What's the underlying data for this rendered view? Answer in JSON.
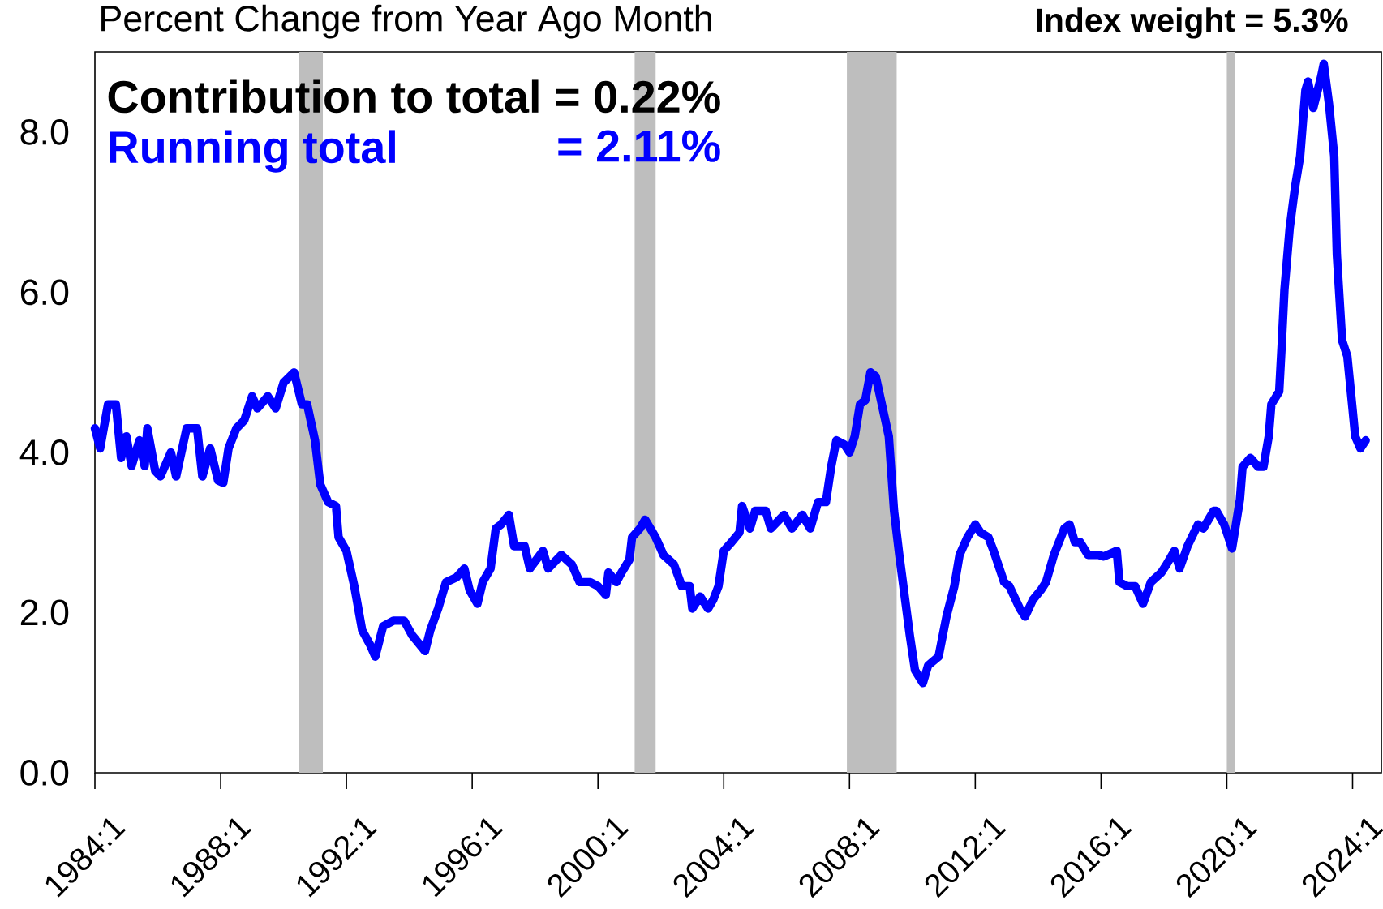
{
  "chart_data": {
    "type": "line",
    "title": "Percent Change from Year Ago Month",
    "annotations": [
      "Index weight = 5.3%",
      "Contribution to total = 0.22%",
      "Running total",
      "= 2.11%"
    ],
    "x": [
      "1984-01",
      "1984-03",
      "1984-06",
      "1984-09",
      "1984-11",
      "1985-01",
      "1985-03",
      "1985-06",
      "1985-08",
      "1985-09",
      "1985-12",
      "1986-02",
      "1986-06",
      "1986-08",
      "1986-12",
      "1987-04",
      "1987-06",
      "1987-09",
      "1987-12",
      "1988-02",
      "1988-04",
      "1988-07",
      "1988-10",
      "1989-01",
      "1989-03",
      "1989-07",
      "1989-10",
      "1990-01",
      "1990-05",
      "1990-08",
      "1990-10",
      "1991-01",
      "1991-03",
      "1991-06",
      "1991-09",
      "1991-10",
      "1992-01",
      "1992-04",
      "1992-07",
      "1992-10",
      "1992-12",
      "1993-03",
      "1993-07",
      "1993-11",
      "1994-02",
      "1994-07",
      "1994-09",
      "1994-12",
      "1995-03",
      "1995-07",
      "1995-10",
      "1995-12",
      "1996-03",
      "1996-05",
      "1996-08",
      "1996-10",
      "1996-12",
      "1997-03",
      "1997-05",
      "1997-09",
      "1997-11",
      "1998-04",
      "1998-06",
      "1998-11",
      "1999-03",
      "1999-06",
      "1999-10",
      "2000-01",
      "2000-04",
      "2000-05",
      "2000-08",
      "2000-10",
      "2001-01",
      "2001-02",
      "2001-05",
      "2001-07",
      "2001-09",
      "2001-11",
      "2002-02",
      "2002-06",
      "2002-09",
      "2002-12",
      "2003-01",
      "2003-04",
      "2003-07",
      "2003-09",
      "2003-11",
      "2004-01",
      "2004-04",
      "2004-07",
      "2004-08",
      "2004-11",
      "2005-01",
      "2005-05",
      "2005-07",
      "2005-12",
      "2006-03",
      "2006-07",
      "2006-10",
      "2007-01",
      "2007-04",
      "2007-06",
      "2007-08",
      "2007-11",
      "2008-01",
      "2008-03",
      "2008-05",
      "2008-07",
      "2008-09",
      "2008-11",
      "2009-01",
      "2009-04",
      "2009-06",
      "2009-08",
      "2009-10",
      "2009-12",
      "2010-02",
      "2010-05",
      "2010-07",
      "2010-11",
      "2011-02",
      "2011-05",
      "2011-07",
      "2011-10",
      "2012-01",
      "2012-03",
      "2012-06",
      "2012-08",
      "2012-12",
      "2013-02",
      "2013-06",
      "2013-08",
      "2013-11",
      "2014-02",
      "2014-04",
      "2014-07",
      "2014-11",
      "2015-01",
      "2015-03",
      "2015-05",
      "2015-08",
      "2015-12",
      "2016-02",
      "2016-07",
      "2016-08",
      "2016-11",
      "2017-02",
      "2017-05",
      "2017-08",
      "2017-12",
      "2018-02",
      "2018-05",
      "2018-07",
      "2018-10",
      "2019-02",
      "2019-04",
      "2019-08",
      "2019-09",
      "2019-12",
      "2020-03",
      "2020-06",
      "2020-07",
      "2020-10",
      "2021-01",
      "2021-03",
      "2021-05",
      "2021-06",
      "2021-09",
      "2021-10",
      "2021-11",
      "2022-01",
      "2022-03",
      "2022-05",
      "2022-07",
      "2022-08",
      "2022-10",
      "2023-01",
      "2023-02",
      "2023-04",
      "2023-06",
      "2023-07",
      "2023-09",
      "2023-11",
      "2024-01",
      "2024-02",
      "2024-04",
      "2024-06"
    ],
    "series": [
      {
        "color": "#0000ff",
        "values": [
          4.3,
          4.05,
          4.6,
          4.6,
          3.93,
          4.2,
          3.83,
          4.15,
          3.83,
          4.3,
          3.77,
          3.7,
          4.0,
          3.7,
          4.3,
          4.3,
          3.7,
          4.05,
          3.65,
          3.62,
          4.05,
          4.3,
          4.4,
          4.7,
          4.55,
          4.7,
          4.55,
          4.87,
          5.0,
          4.6,
          4.6,
          4.15,
          3.6,
          3.38,
          3.33,
          2.94,
          2.77,
          2.33,
          1.78,
          1.6,
          1.45,
          1.83,
          1.9,
          1.9,
          1.72,
          1.52,
          1.78,
          2.05,
          2.38,
          2.44,
          2.55,
          2.28,
          2.11,
          2.38,
          2.55,
          3.05,
          3.1,
          3.22,
          2.83,
          2.83,
          2.55,
          2.77,
          2.55,
          2.72,
          2.6,
          2.38,
          2.38,
          2.33,
          2.22,
          2.5,
          2.38,
          2.5,
          2.66,
          2.94,
          3.05,
          3.16,
          3.05,
          2.94,
          2.72,
          2.6,
          2.33,
          2.33,
          2.05,
          2.2,
          2.05,
          2.16,
          2.33,
          2.77,
          2.88,
          3.0,
          3.33,
          3.05,
          3.27,
          3.27,
          3.05,
          3.22,
          3.05,
          3.22,
          3.05,
          3.38,
          3.38,
          3.82,
          4.15,
          4.1,
          4.0,
          4.2,
          4.6,
          4.65,
          5.0,
          4.95,
          4.65,
          4.2,
          3.27,
          2.72,
          2.22,
          1.72,
          1.28,
          1.12,
          1.34,
          1.45,
          1.95,
          2.33,
          2.72,
          2.94,
          3.1,
          3.0,
          2.94,
          2.77,
          2.38,
          2.33,
          2.05,
          1.95,
          2.16,
          2.28,
          2.38,
          2.72,
          3.05,
          3.1,
          2.88,
          2.88,
          2.72,
          2.72,
          2.7,
          2.77,
          2.38,
          2.33,
          2.33,
          2.11,
          2.38,
          2.5,
          2.6,
          2.77,
          2.55,
          2.83,
          3.1,
          3.05,
          3.27,
          3.27,
          3.1,
          2.8,
          3.41,
          3.82,
          3.93,
          3.82,
          3.82,
          4.2,
          4.6,
          4.76,
          5.37,
          6.03,
          6.8,
          7.3,
          7.7,
          8.52,
          8.63,
          8.3,
          8.69,
          8.85,
          8.35,
          7.7,
          6.47,
          5.4,
          5.2,
          4.54,
          4.2,
          4.05,
          4.15
        ]
      }
    ],
    "xlim": [
      "1984-01",
      "2024-12"
    ],
    "ylim": [
      0,
      9.0
    ],
    "xticks": [
      {
        "value": "1984-01",
        "label": "1984:1"
      },
      {
        "value": "1988-01",
        "label": "1988:1"
      },
      {
        "value": "1992-01",
        "label": "1992:1"
      },
      {
        "value": "1996-01",
        "label": "1996:1"
      },
      {
        "value": "2000-01",
        "label": "2000:1"
      },
      {
        "value": "2004-01",
        "label": "2004:1"
      },
      {
        "value": "2008-01",
        "label": "2008:1"
      },
      {
        "value": "2012-01",
        "label": "2012:1"
      },
      {
        "value": "2016-01",
        "label": "2016:1"
      },
      {
        "value": "2020-01",
        "label": "2020:1"
      },
      {
        "value": "2024-01",
        "label": "2024:1"
      }
    ],
    "yticks": [
      {
        "value": 0,
        "label": "0.0"
      },
      {
        "value": 2,
        "label": "2.0"
      },
      {
        "value": 4,
        "label": "4.0"
      },
      {
        "value": 6,
        "label": "6.0"
      },
      {
        "value": 8,
        "label": "8.0"
      }
    ],
    "bands": [
      {
        "axis": "x",
        "from": "1990-07",
        "to": "1991-04",
        "color": "#bebebe"
      },
      {
        "axis": "x",
        "from": "2001-03",
        "to": "2001-11",
        "color": "#bebebe"
      },
      {
        "axis": "x",
        "from": "2007-12",
        "to": "2009-07",
        "color": "#bebebe"
      },
      {
        "axis": "x",
        "from": "2020-01",
        "to": "2020-04",
        "color": "#bebebe"
      }
    ],
    "grid": false,
    "marker": "none",
    "line_style": "solid"
  }
}
